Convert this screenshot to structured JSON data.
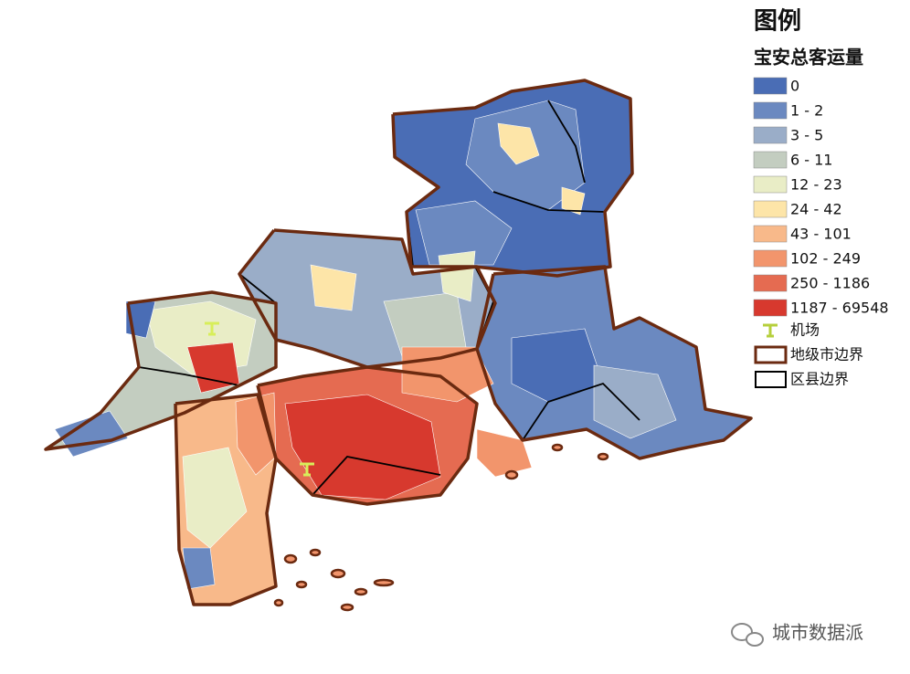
{
  "legend": {
    "title": "图例",
    "subtitle": "宝安总客运量",
    "classes": [
      {
        "label": "0",
        "color": "#4a6db5"
      },
      {
        "label": "1 - 2",
        "color": "#6b89c0"
      },
      {
        "label": "3 - 5",
        "color": "#9aadc8"
      },
      {
        "label": "6 - 11",
        "color": "#c3cdc0"
      },
      {
        "label": "12 - 23",
        "color": "#e9edc6"
      },
      {
        "label": "24 - 42",
        "color": "#fde5a8"
      },
      {
        "label": "43 - 101",
        "color": "#f8b98a"
      },
      {
        "label": "102 - 249",
        "color": "#f2956c"
      },
      {
        "label": "250 - 1186",
        "color": "#e56b51"
      },
      {
        "label": "1187 - 69548",
        "color": "#d7392e"
      }
    ],
    "symbols": [
      {
        "label": "机场"
      },
      {
        "label": "地级市边界"
      },
      {
        "label": "区县边界"
      }
    ]
  },
  "watermark": "城市数据派"
}
